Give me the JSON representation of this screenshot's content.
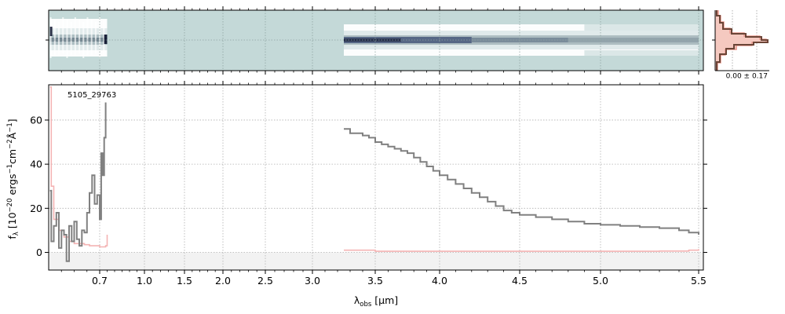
{
  "chart_data": [
    {
      "panel": "2d-spectrum",
      "type": "heatmap",
      "colormap": [
        "#c4d9d8",
        "#ffffff",
        "#0a0f2a"
      ],
      "x_range": [
        0.5,
        5.52
      ]
    },
    {
      "panel": "profile",
      "type": "line",
      "annotation": "0.00 ± 0.17",
      "colors": {
        "model": "#e8968a",
        "data": "#6b4537"
      }
    },
    {
      "panel": "1d-spectrum",
      "type": "line",
      "label": "5105_29763",
      "xlabel_main": "λ",
      "xlabel_sub": "obs",
      "xlabel_unit": " [μm]",
      "ylabel": "f_λ [10^-20 erg s^-1 cm^-2 Å^-1]",
      "ylabel_parts": {
        "f": "f",
        "sub": "λ",
        "open": " [10",
        "e1": "−20",
        "t1": " ergs",
        "e2": "−1",
        "t2": "cm",
        "e3": "−2",
        "t3": "Å",
        "e4": "−1",
        "close": "]"
      },
      "x_scale": "reciprocal-stretch",
      "xlim": [
        0.5,
        5.52
      ],
      "ylim": [
        -8,
        76
      ],
      "grid": true,
      "x_ticks_major": [
        0.7,
        1.0,
        1.5,
        2.0,
        2.5,
        3.0,
        3.5,
        4.0,
        4.5,
        5.0,
        5.5
      ],
      "x_tick_labels": [
        "0.7",
        "1.0",
        "1.5",
        "2.0",
        "2.5",
        "3.0",
        "3.5",
        "4.0",
        "4.5",
        "5.0",
        "5.5"
      ],
      "y_ticks": [
        0,
        20,
        40,
        60
      ],
      "y_tick_labels": [
        "0",
        "20",
        "40",
        "60"
      ],
      "colors": {
        "flux": "#808080",
        "error": "#f4b3b3",
        "zero_band": "#f2f2f2"
      },
      "series": [
        {
          "role": "flux",
          "x": [
            0.505,
            0.51,
            0.52,
            0.53,
            0.54,
            0.55,
            0.56,
            0.57,
            0.58,
            0.59,
            0.6,
            0.61,
            0.62,
            0.63,
            0.64,
            0.65,
            0.66,
            0.67,
            0.68,
            0.69,
            0.7,
            0.71,
            0.72,
            0.73,
            0.74,
            3.25,
            3.3,
            3.35,
            3.4,
            3.45,
            3.5,
            3.55,
            3.6,
            3.65,
            3.7,
            3.75,
            3.8,
            3.85,
            3.9,
            3.95,
            4.0,
            4.05,
            4.1,
            4.15,
            4.2,
            4.25,
            4.3,
            4.35,
            4.4,
            4.45,
            4.5,
            4.6,
            4.7,
            4.8,
            4.9,
            5.0,
            5.1,
            5.2,
            5.3,
            5.4,
            5.45,
            5.5
          ],
          "y": [
            28,
            5,
            12,
            18,
            2,
            10,
            8,
            -4,
            12,
            5,
            14,
            6,
            3,
            10,
            9,
            18,
            27,
            35,
            22,
            26,
            15,
            45,
            35,
            52,
            68,
            56,
            54,
            54,
            53,
            52,
            50,
            49,
            48,
            47,
            46,
            45,
            43,
            41,
            39,
            37,
            35,
            33,
            31,
            29,
            27,
            25,
            23,
            21,
            19,
            18,
            17,
            16,
            15,
            14,
            13,
            12.5,
            12,
            11.5,
            11,
            10,
            9,
            8
          ]
        },
        {
          "role": "error",
          "x": [
            0.505,
            0.51,
            0.52,
            0.54,
            0.56,
            0.58,
            0.6,
            0.62,
            0.64,
            0.66,
            0.68,
            0.7,
            0.72,
            0.74,
            0.75,
            3.25,
            3.5,
            4.0,
            4.5,
            5.0,
            5.3,
            5.45,
            5.5
          ],
          "y": [
            75,
            30,
            15,
            10,
            7,
            5,
            4,
            4,
            3.5,
            3,
            3,
            2.5,
            2.5,
            3,
            8,
            1,
            0.5,
            0.5,
            0.5,
            0.5,
            0.6,
            1,
            1.5
          ]
        }
      ]
    }
  ]
}
